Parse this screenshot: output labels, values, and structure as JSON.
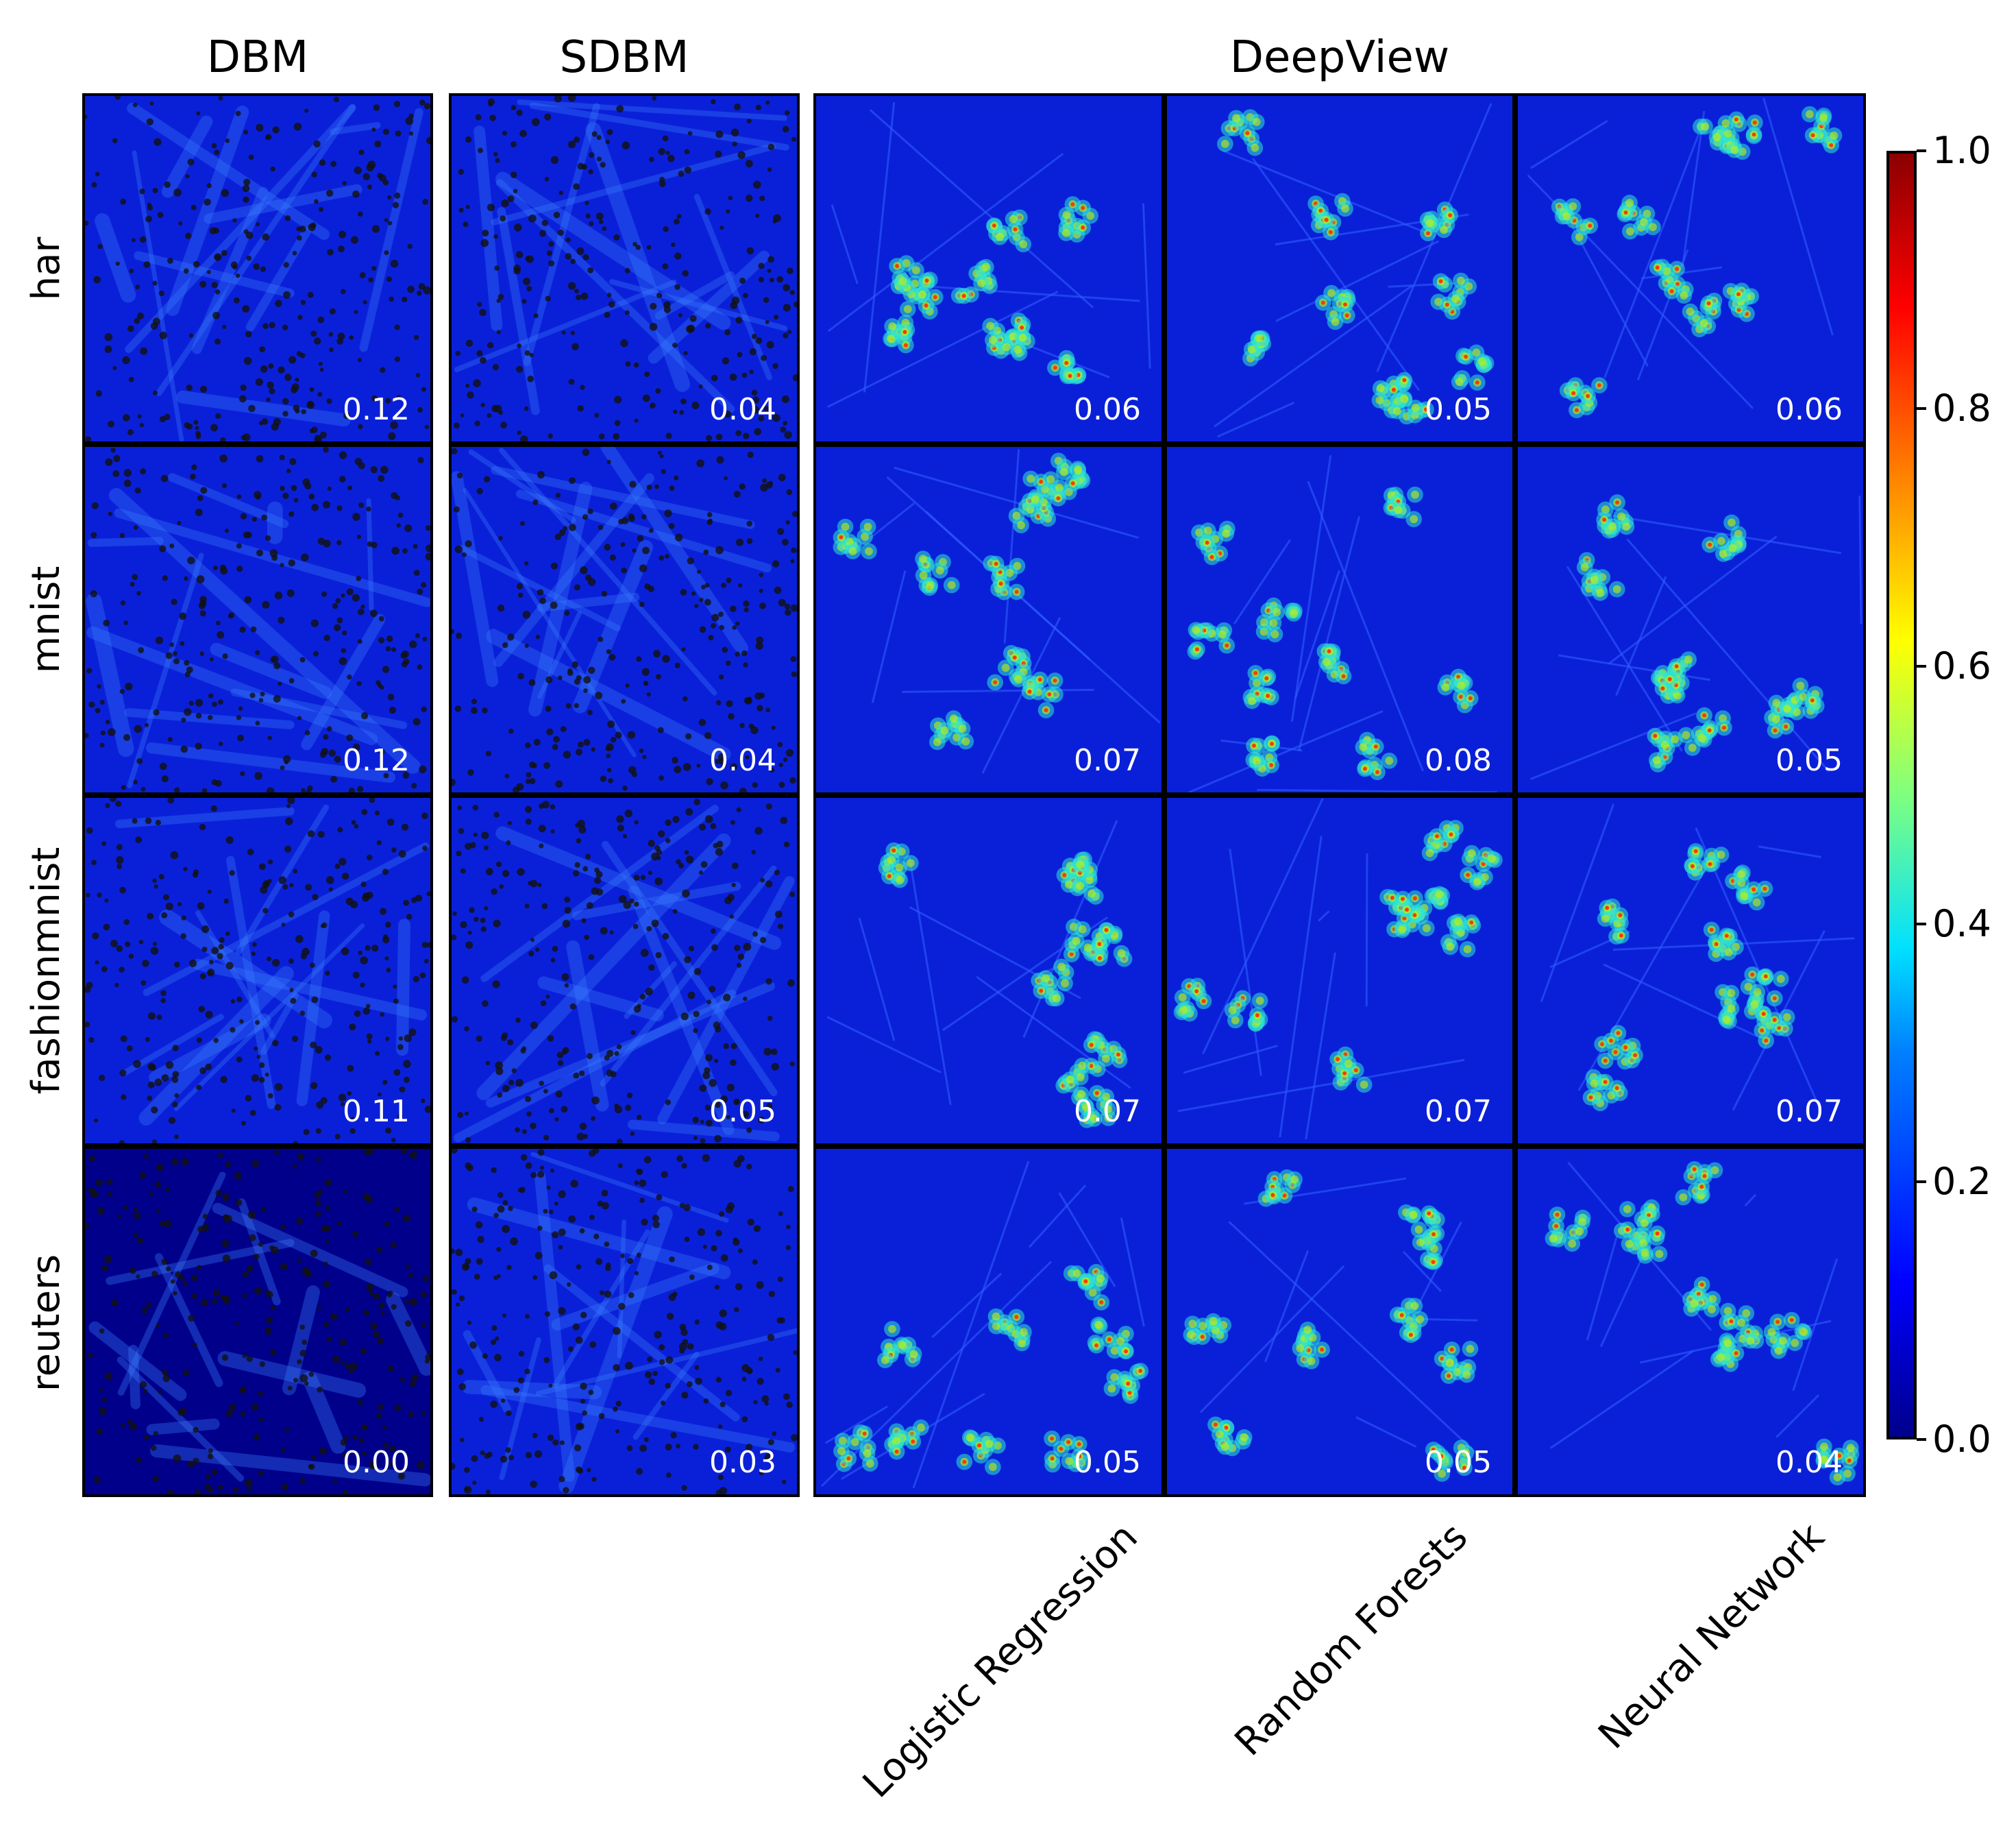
{
  "chart_data": {
    "type": "heatmap",
    "title": "",
    "group_titles": [
      "DBM",
      "SDBM",
      "DeepView"
    ],
    "row_labels": [
      "har",
      "mnist",
      "fashionmnist",
      "reuters"
    ],
    "column_labels": [
      "",
      "",
      "Logistic Regression",
      "Random Forests",
      "Neural Network"
    ],
    "colorbar": {
      "min": 0.0,
      "max": 1.0,
      "ticks": [
        "0.0",
        "0.2",
        "0.4",
        "0.6",
        "0.8",
        "1.0"
      ],
      "colormap": "jet"
    },
    "scores": [
      [
        "0.12",
        "0.04",
        "0.06",
        "0.05",
        "0.06"
      ],
      [
        "0.12",
        "0.04",
        "0.07",
        "0.08",
        "0.05"
      ],
      [
        "0.11",
        "0.05",
        "0.07",
        "0.07",
        "0.07"
      ],
      [
        "0.00",
        "0.03",
        "0.05",
        "0.05",
        "0.04"
      ]
    ],
    "background_color": "#0a20d8",
    "low_color": "#00008b",
    "high_color": "#8b0000"
  }
}
